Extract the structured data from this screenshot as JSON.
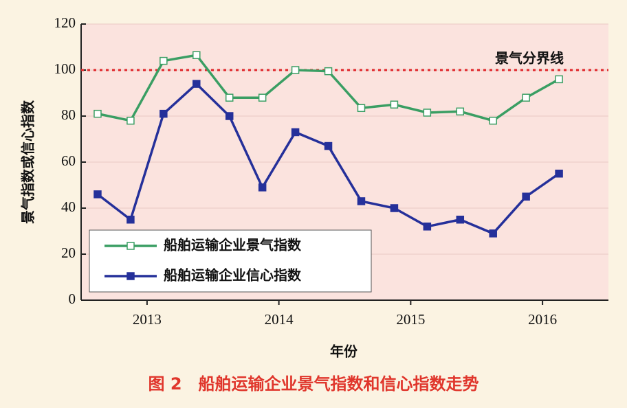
{
  "chart_data": {
    "type": "line",
    "caption": "图 2　船舶运输企业景气指数和信心指数走势",
    "x_label": "年份",
    "y_label": "景气指数或信心指数",
    "x": [
      2013.125,
      2013.375,
      2013.625,
      2013.875,
      2014.125,
      2014.375,
      2014.625,
      2014.875,
      2015.125,
      2015.375,
      2015.625,
      2015.875,
      2016.125,
      2016.375,
      2016.625
    ],
    "xlim": [
      2013,
      2017
    ],
    "xticks": [
      {
        "value": 2013.5,
        "label": "2013"
      },
      {
        "value": 2014.5,
        "label": "2014"
      },
      {
        "value": 2015.5,
        "label": "2015"
      },
      {
        "value": 2016.5,
        "label": "2016"
      }
    ],
    "ylim": [
      0,
      120
    ],
    "yticks": [
      0,
      20,
      40,
      60,
      80,
      100,
      120
    ],
    "grid": true,
    "reference_line": {
      "value": 100,
      "label": "景气分界线",
      "color": "#e0262a"
    },
    "legend": "lower-left",
    "series": [
      {
        "name": "船舶运输企业景气指数",
        "color": "#3a9e63",
        "marker": "hollow-square",
        "values": [
          81,
          78,
          104,
          106.5,
          88,
          88,
          100,
          99.5,
          83.5,
          85,
          81.5,
          82,
          78,
          88,
          96
        ]
      },
      {
        "name": "船舶运输企业信心指数",
        "color": "#25309a",
        "marker": "filled-square",
        "values": [
          46,
          35,
          81,
          94,
          80,
          49,
          73,
          67,
          43,
          40,
          32,
          35,
          29,
          45,
          55
        ]
      }
    ]
  }
}
